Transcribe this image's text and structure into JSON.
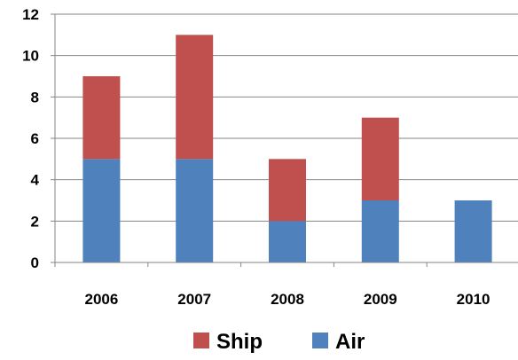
{
  "chart_data": {
    "type": "bar",
    "stacked": true,
    "categories": [
      "2006",
      "2007",
      "2008",
      "2009",
      "2010"
    ],
    "series": [
      {
        "name": "Air",
        "values": [
          5,
          5,
          2,
          3,
          3
        ],
        "color": "#4f81bd"
      },
      {
        "name": "Ship",
        "values": [
          4,
          6,
          3,
          4,
          0
        ],
        "color": "#c0504d"
      }
    ],
    "legend_order": [
      "Ship",
      "Air"
    ],
    "title": "",
    "xlabel": "",
    "ylabel": "",
    "ylim": [
      0,
      12
    ],
    "yticks": [
      "0",
      "2",
      "4",
      "6",
      "8",
      "10",
      "12"
    ],
    "grid": true,
    "legend_position": "bottom"
  },
  "colors": {
    "gridline": "#868686",
    "axis": "#868686",
    "background": "#ffffff"
  }
}
